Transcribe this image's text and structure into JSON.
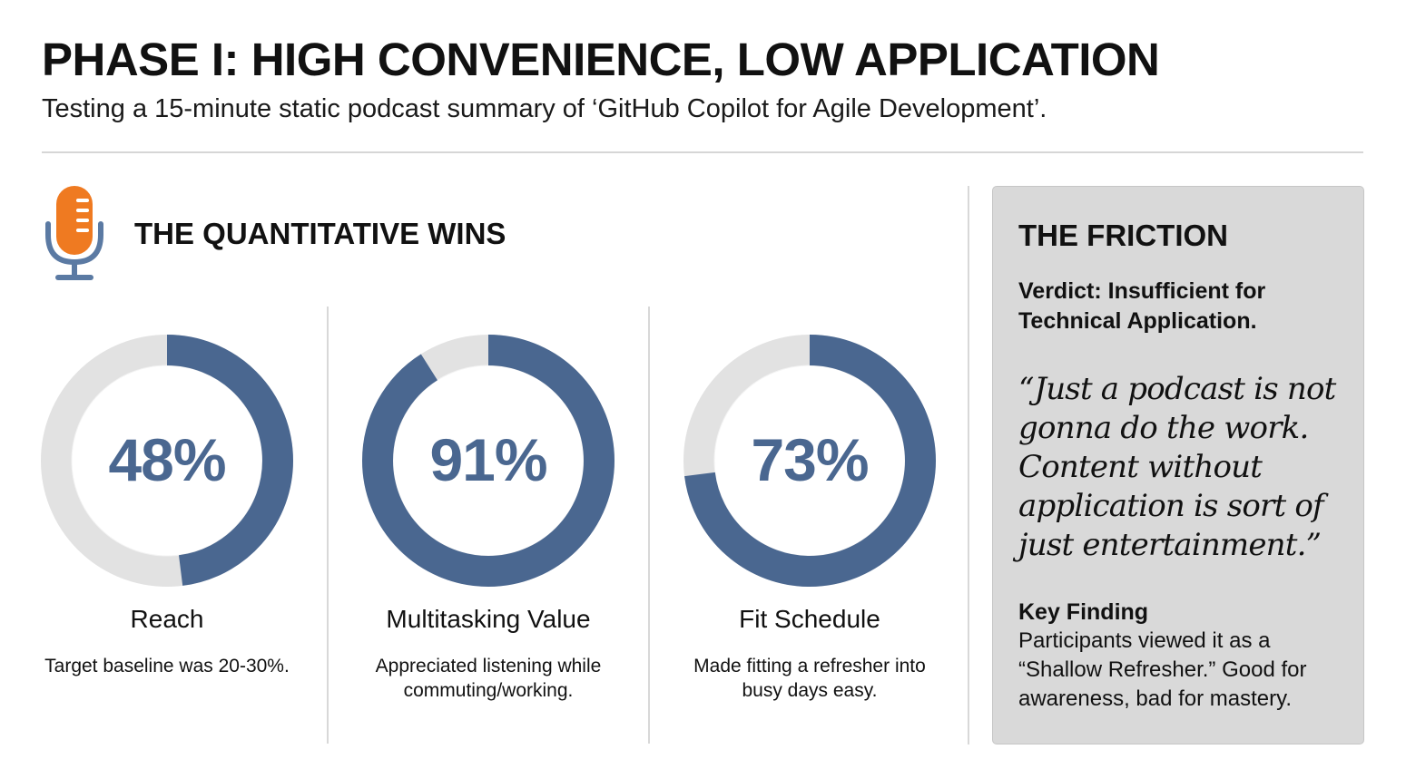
{
  "header": {
    "title": "PHASE I: HIGH CONVENIENCE, LOW APPLICATION",
    "subtitle": "Testing a 15-minute static podcast summary of ‘GitHub Copilot for Agile Development’."
  },
  "wins": {
    "title": "THE QUANTITATIVE WINS",
    "icon": "microphone-icon"
  },
  "colors": {
    "accent": "#4a6790",
    "track": "#e2e2e2",
    "mic_orange": "#ef7a21",
    "mic_blue": "#5b7aa3",
    "panel_bg": "#d9d9d9"
  },
  "chart_data": {
    "type": "pie",
    "charts": [
      {
        "name": "Reach",
        "value": 48,
        "max": 100,
        "label": "48%",
        "description": "Target baseline was 20-30%."
      },
      {
        "name": "Multitasking Value",
        "value": 91,
        "max": 100,
        "label": "91%",
        "description": "Appreciated listening while commuting/working."
      },
      {
        "name": "Fit Schedule",
        "value": 73,
        "max": 100,
        "label": "73%",
        "description": "Made fitting a refresher into busy days easy."
      }
    ]
  },
  "friction": {
    "title": "THE FRICTION",
    "verdict": "Verdict: Insufficient for Technical Application.",
    "quote": "“Just a podcast is not gonna do the work. Content without application is sort of just entertainment.”",
    "finding_title": "Key Finding",
    "finding_text": "Participants viewed it as a “Shallow Refresher.” Good for awareness, bad for mastery."
  }
}
